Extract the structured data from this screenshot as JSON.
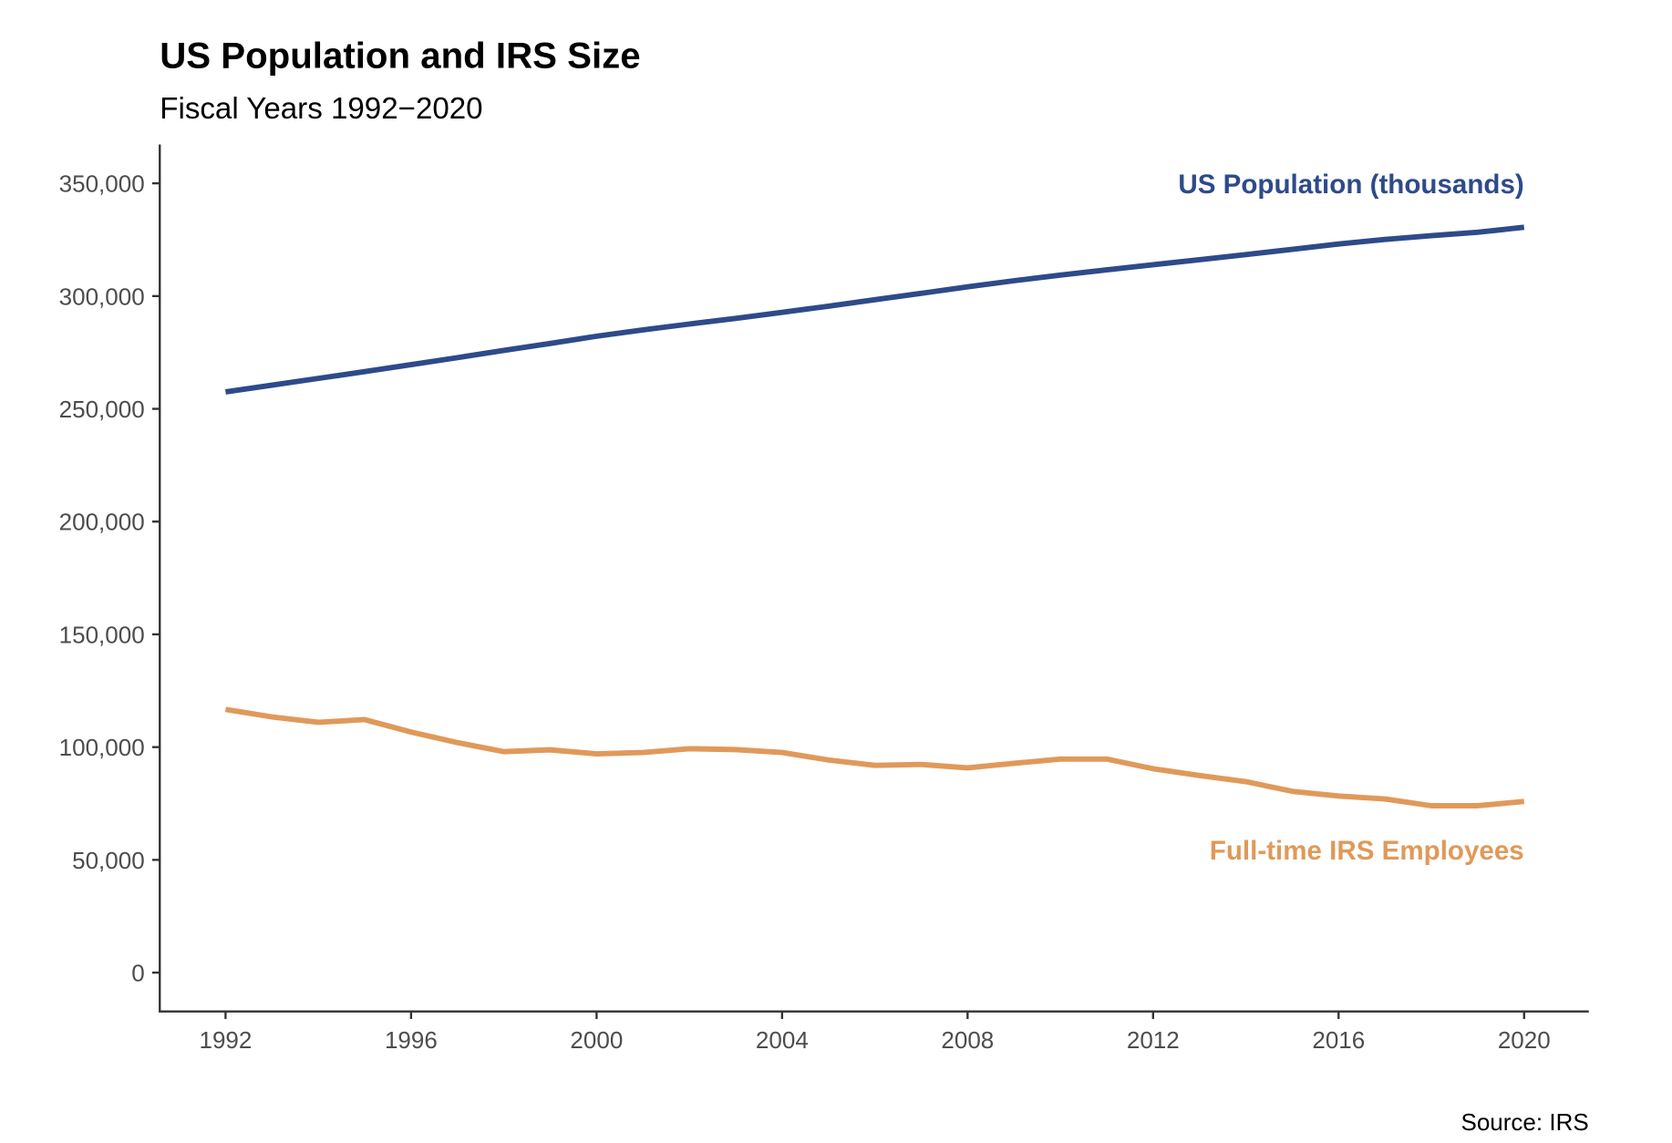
{
  "chart_data": {
    "type": "line",
    "title": "US Population and IRS Size",
    "subtitle": "Fiscal Years 1992−2020",
    "caption": "Source: IRS",
    "xlabel": "",
    "ylabel": "",
    "xlim": [
      1992,
      2020
    ],
    "ylim": [
      0,
      350000
    ],
    "x_ticks": [
      1992,
      1996,
      2000,
      2004,
      2008,
      2012,
      2016,
      2020
    ],
    "y_ticks": [
      0,
      50000,
      100000,
      150000,
      200000,
      250000,
      300000,
      350000
    ],
    "y_tick_labels": [
      "0",
      "50,000",
      "100,000",
      "150,000",
      "200,000",
      "250,000",
      "300,000",
      "350,000"
    ],
    "grid": false,
    "legend": "direct labels at right end of lines",
    "x": [
      1992,
      1993,
      1994,
      1995,
      1996,
      1997,
      1998,
      1999,
      2000,
      2001,
      2002,
      2003,
      2004,
      2005,
      2006,
      2007,
      2008,
      2009,
      2010,
      2011,
      2012,
      2013,
      2014,
      2015,
      2016,
      2017,
      2018,
      2019,
      2020
    ],
    "series": [
      {
        "name": "US Population (thousands)",
        "color": "#2e4a8a",
        "values": [
          257500,
          260500,
          263500,
          266500,
          269600,
          272700,
          275900,
          279000,
          282200,
          285000,
          287600,
          290100,
          292800,
          295500,
          298400,
          301200,
          304100,
          306800,
          309300,
          311600,
          313900,
          316100,
          318400,
          320700,
          323100,
          325100,
          326800,
          328300,
          330500
        ]
      },
      {
        "name": "Full-time IRS Employees",
        "color": "#e0995a",
        "values": [
          116700,
          113400,
          111000,
          112200,
          106700,
          102000,
          98000,
          98800,
          97000,
          97600,
          99300,
          98900,
          97600,
          94300,
          91900,
          92300,
          90800,
          92800,
          94700,
          94700,
          90400,
          87400,
          84700,
          80400,
          78300,
          77000,
          74000,
          74000,
          75900
        ]
      }
    ]
  }
}
